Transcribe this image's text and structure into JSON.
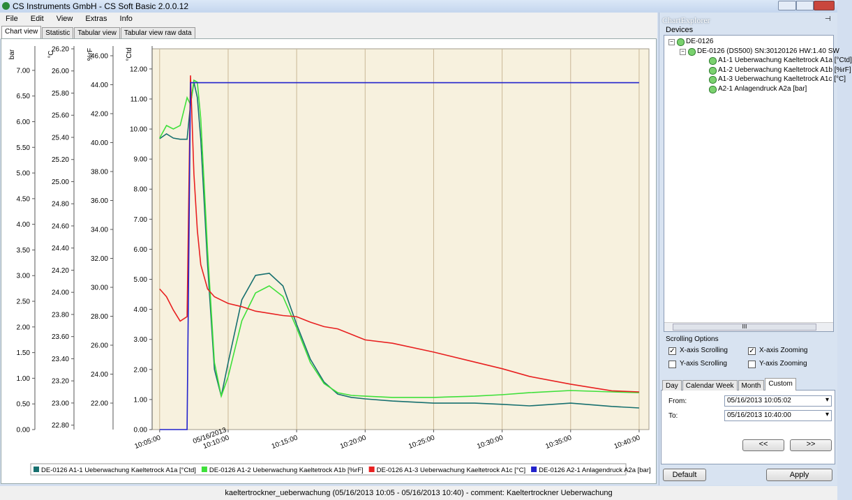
{
  "window": {
    "title": "CS Instruments GmbH - CS Soft Basic 2.0.0.12"
  },
  "menu": [
    "File",
    "Edit",
    "View",
    "Extras",
    "Info"
  ],
  "tabs": [
    "Chart view",
    "Statistic",
    "Tabular view",
    "Tabular view raw data"
  ],
  "chart_data": {
    "type": "line",
    "x": [
      "10:05:00",
      "10:05:30",
      "10:06:00",
      "10:06:30",
      "10:07:00",
      "10:07:15",
      "10:07:30",
      "10:07:45",
      "10:08:00",
      "10:08:30",
      "10:09:00",
      "10:09:30",
      "10:10:00",
      "10:11:00",
      "10:12:00",
      "10:13:00",
      "10:14:00",
      "10:15:00",
      "10:16:00",
      "10:17:00",
      "10:18:00",
      "10:19:00",
      "10:20:00",
      "10:22:00",
      "10:25:00",
      "10:28:00",
      "10:30:00",
      "10:32:00",
      "10:35:00",
      "10:38:00",
      "10:40:00"
    ],
    "xlim": [
      "10:04:27",
      "10:40:43"
    ],
    "xticks": [
      "10:05:00",
      "10:10:00",
      "10:15:00",
      "10:20:00",
      "10:25:00",
      "10:30:00",
      "10:35:00",
      "10:40:00"
    ],
    "x_date_label": "05/16/2013",
    "x_date_tick": 1,
    "grid": true,
    "axes": [
      {
        "label": "bar",
        "ylim": [
          0,
          7.42
        ],
        "yticks": [
          {
            "value": 0,
            "label": "0.00"
          },
          {
            "value": 0.5,
            "label": "0.50"
          },
          {
            "value": 1,
            "label": "1.00"
          },
          {
            "value": 1.5,
            "label": "1.50"
          },
          {
            "value": 2,
            "label": "2.00"
          },
          {
            "value": 2.5,
            "label": "2.50"
          },
          {
            "value": 3,
            "label": "3.00"
          },
          {
            "value": 3.5,
            "label": "3.50"
          },
          {
            "value": 4,
            "label": "4.00"
          },
          {
            "value": 4.5,
            "label": "4.50"
          },
          {
            "value": 5,
            "label": "5.00"
          },
          {
            "value": 5.5,
            "label": "5.50"
          },
          {
            "value": 6,
            "label": "6.00"
          },
          {
            "value": 6.5,
            "label": "6.50"
          },
          {
            "value": 7,
            "label": "7.00"
          }
        ]
      },
      {
        "label": "°C",
        "ylim": [
          22.76,
          26.2
        ],
        "yticks": [
          {
            "value": 22.8,
            "label": "22.80"
          },
          {
            "value": 23,
            "label": "23.00"
          },
          {
            "value": 23.2,
            "label": "23.20"
          },
          {
            "value": 23.4,
            "label": "23.40"
          },
          {
            "value": 23.6,
            "label": "23.60"
          },
          {
            "value": 23.8,
            "label": "23.80"
          },
          {
            "value": 24,
            "label": "24.00"
          },
          {
            "value": 24.2,
            "label": "24.20"
          },
          {
            "value": 24.4,
            "label": "24.40"
          },
          {
            "value": 24.6,
            "label": "24.60"
          },
          {
            "value": 24.8,
            "label": "24.80"
          },
          {
            "value": 25,
            "label": "25.00"
          },
          {
            "value": 25.2,
            "label": "25.20"
          },
          {
            "value": 25.4,
            "label": "25.40"
          },
          {
            "value": 25.6,
            "label": "25.60"
          },
          {
            "value": 25.8,
            "label": "25.80"
          },
          {
            "value": 26,
            "label": "26.00"
          },
          {
            "value": 26.2,
            "label": "26.20"
          }
        ]
      },
      {
        "label": "%rF",
        "ylim": [
          20.17,
          46.48
        ],
        "yticks": [
          {
            "value": 22,
            "label": "22.00"
          },
          {
            "value": 24,
            "label": "24.00"
          },
          {
            "value": 26,
            "label": "26.00"
          },
          {
            "value": 28,
            "label": "28.00"
          },
          {
            "value": 30,
            "label": "30.00"
          },
          {
            "value": 32,
            "label": "32.00"
          },
          {
            "value": 34,
            "label": "34.00"
          },
          {
            "value": 36,
            "label": "36.00"
          },
          {
            "value": 38,
            "label": "38.00"
          },
          {
            "value": 40,
            "label": "40.00"
          },
          {
            "value": 42,
            "label": "42.00"
          },
          {
            "value": 44,
            "label": "44.00"
          },
          {
            "value": 46,
            "label": "46.00"
          }
        ]
      },
      {
        "label": "°Ctd",
        "ylim": [
          0,
          12.67
        ],
        "yticks": [
          {
            "value": 0,
            "label": "0.00"
          },
          {
            "value": 1,
            "label": "1.00"
          },
          {
            "value": 2,
            "label": "2.00"
          },
          {
            "value": 3,
            "label": "3.00"
          },
          {
            "value": 4,
            "label": "4.00"
          },
          {
            "value": 5,
            "label": "5.00"
          },
          {
            "value": 6,
            "label": "6.00"
          },
          {
            "value": 7,
            "label": "7.00"
          },
          {
            "value": 8,
            "label": "8.00"
          },
          {
            "value": 9,
            "label": "9.00"
          },
          {
            "value": 10,
            "label": "10.00"
          },
          {
            "value": 11,
            "label": "11.00"
          },
          {
            "value": 12,
            "label": "12.00"
          }
        ]
      }
    ],
    "series": [
      {
        "name": "DE-0126 A1-1 Ueberwachung Kaeltetrock A1a [°Ctd]",
        "color": "#17706f",
        "axis": "°Ctd",
        "values": [
          9.68,
          9.84,
          9.7,
          9.66,
          9.66,
          10.82,
          11.56,
          11.05,
          9.66,
          5.48,
          2.0,
          1.11,
          2.23,
          4.32,
          5.13,
          5.2,
          4.78,
          3.5,
          2.34,
          1.58,
          1.18,
          1.07,
          1.02,
          0.95,
          0.88,
          0.88,
          0.84,
          0.79,
          0.88,
          0.77,
          0.72
        ]
      },
      {
        "name": "DE-0126 A1-2 Ueberwachung Kaeltetrock A1b [%rF]",
        "color": "#3ee03a",
        "axis": "%rF",
        "values": [
          40.31,
          41.18,
          40.94,
          41.18,
          43.11,
          42.63,
          44.31,
          44.17,
          41.66,
          32.51,
          24.8,
          22.48,
          23.83,
          27.69,
          29.61,
          30.1,
          29.37,
          27.2,
          24.8,
          23.35,
          22.72,
          22.53,
          22.48,
          22.39,
          22.39,
          22.48,
          22.58,
          22.72,
          22.87,
          22.77,
          22.72
        ]
      },
      {
        "name": "DE-0126 A1-3 Ueberwachung Kaeltetrock A1c [°C]",
        "color": "#e82020",
        "axis": "°C",
        "values": [
          24.03,
          23.96,
          23.84,
          23.74,
          23.78,
          25.96,
          25.07,
          24.56,
          24.25,
          24.03,
          23.96,
          23.93,
          23.9,
          23.87,
          23.83,
          23.81,
          23.79,
          23.78,
          23.73,
          23.69,
          23.67,
          23.62,
          23.57,
          23.54,
          23.46,
          23.37,
          23.31,
          23.24,
          23.17,
          23.11,
          23.1
        ]
      },
      {
        "name": "DE-0126 A2-1 Anlagendruck A2a [bar]",
        "color": "#2222cc",
        "axis": "bar",
        "values": [
          0,
          0,
          0,
          0,
          0,
          6.76,
          6.76,
          6.76,
          6.76,
          6.76,
          6.76,
          6.76,
          6.76,
          6.76,
          6.76,
          6.76,
          6.76,
          6.76,
          6.76,
          6.76,
          6.76,
          6.76,
          6.76,
          6.76,
          6.76,
          6.76,
          6.76,
          6.76,
          6.76,
          6.76,
          6.76
        ]
      }
    ]
  },
  "explorer": {
    "title": "ChartExplorer",
    "devices_label": "Devices",
    "tree": [
      {
        "label": "DE-0126",
        "children": [
          {
            "label": "DE-0126 (DS500)  SN:30120126  HW:1.40  SW",
            "children": [
              {
                "label": "A1-1 Ueberwachung Kaeltetrock A1a [°Ctd]"
              },
              {
                "label": "A1-2 Ueberwachung Kaeltetrock A1b [%rF]"
              },
              {
                "label": "A1-3 Ueberwachung Kaeltetrock A1c [°C]"
              },
              {
                "label": "A2-1 Anlagendruck A2a [bar]"
              }
            ]
          }
        ]
      }
    ],
    "scroll_marker": "III",
    "scrolling_title": "Scrolling Options",
    "checkboxes": [
      {
        "label": "X-axis Scrolling",
        "checked": true
      },
      {
        "label": "X-axis Zooming",
        "checked": true
      },
      {
        "label": "Y-axis Scrolling",
        "checked": false
      },
      {
        "label": "Y-axis Zooming",
        "checked": false
      }
    ],
    "tabs": [
      "Day",
      "Calendar Week",
      "Month",
      "Custom"
    ],
    "active_tab": 3,
    "from_label": "From:",
    "from_value": "05/16/2013 10:05:02",
    "to_label": "To:",
    "to_value": "05/16/2013 10:40:00",
    "prev_button": "<<",
    "next_button": ">>",
    "default_button": "Default",
    "apply_button": "Apply"
  },
  "status": "kaeltertrockner_ueberwachung (05/16/2013 10:05 - 05/16/2013 10:40) - comment: Kaeltertrockner Ueberwachung"
}
